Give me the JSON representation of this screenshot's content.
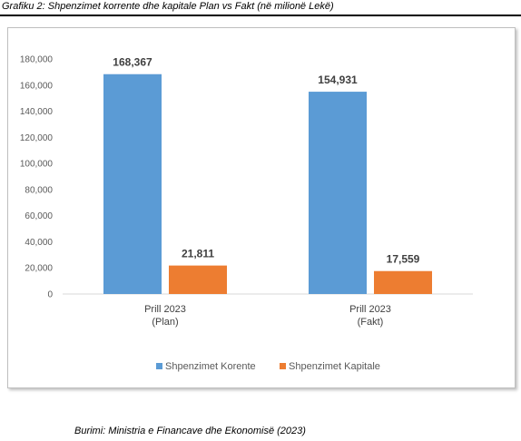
{
  "caption": "Grafiku 2: Shpenzimet korrente dhe kapitale Plan vs Fakt (në milionë Lekë)",
  "source": "Burimi: Ministria e Financave dhe Ekonomisë (2023)",
  "chart_data": {
    "type": "bar",
    "categories": [
      [
        "Prill 2023",
        "(Plan)"
      ],
      [
        "Prill 2023",
        "(Fakt)"
      ]
    ],
    "series": [
      {
        "name": "Shpenzimet Korente",
        "values": [
          168367,
          154931
        ],
        "labels": [
          "168,367",
          "154,931"
        ],
        "color": "#5b9bd5"
      },
      {
        "name": "Shpenzimet Kapitale",
        "values": [
          21811,
          17559
        ],
        "labels": [
          "21,811",
          "17,559"
        ],
        "color": "#ed7d31"
      }
    ],
    "ylim": [
      0,
      180000
    ],
    "yticks": [
      "0",
      "20,000",
      "40,000",
      "60,000",
      "80,000",
      "100,000",
      "120,000",
      "140,000",
      "160,000",
      "180,000"
    ],
    "grid": false,
    "legend_position": "bottom"
  }
}
